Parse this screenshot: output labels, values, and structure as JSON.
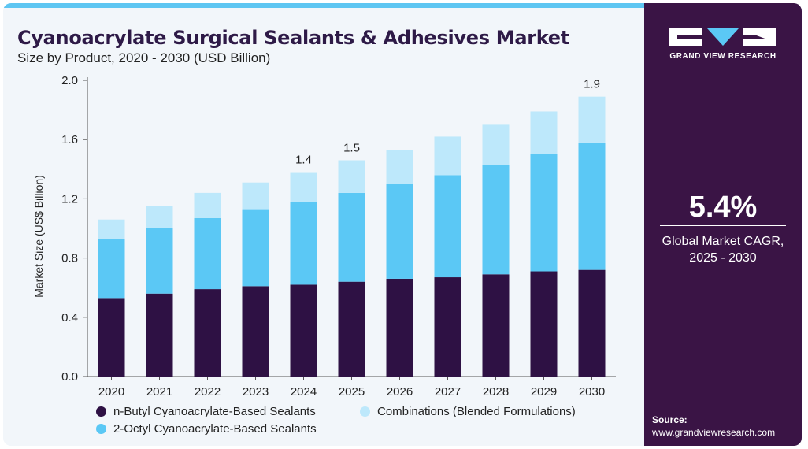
{
  "header": {
    "title": "Cyanoacrylate Surgical Sealants & Adhesives Market",
    "subtitle": "Size by Product, 2020 - 2030 (USD Billion)"
  },
  "brand": {
    "name": "GRAND VIEW RESEARCH",
    "logo_icon": "gvr-logo-icon"
  },
  "side_panel": {
    "cagr_value": "5.4%",
    "cagr_label_line1": "Global Market CAGR,",
    "cagr_label_line2": "2025 - 2030",
    "source_label": "Source:",
    "source_url": "www.grandviewresearch.com"
  },
  "colors": {
    "accent_top_bar": "#5ec6f2",
    "side_panel": "#3a1445",
    "n_butyl": "#2e1144",
    "octyl": "#5bc8f5",
    "combinations": "#bde8fb",
    "title": "#2e1a47"
  },
  "chart_data": {
    "type": "bar",
    "stacked": true,
    "categories": [
      "2020",
      "2021",
      "2022",
      "2023",
      "2024",
      "2025",
      "2026",
      "2027",
      "2028",
      "2029",
      "2030"
    ],
    "series": [
      {
        "name": "n-Butyl Cyanoacrylate-Based Sealants",
        "color": "#2e1144",
        "values": [
          0.53,
          0.56,
          0.59,
          0.61,
          0.62,
          0.64,
          0.66,
          0.67,
          0.69,
          0.71,
          0.72
        ]
      },
      {
        "name": "2-Octyl Cyanoacrylate-Based Sealants",
        "color": "#5bc8f5",
        "values": [
          0.4,
          0.44,
          0.48,
          0.52,
          0.56,
          0.6,
          0.64,
          0.69,
          0.74,
          0.79,
          0.86
        ]
      },
      {
        "name": "Combinations (Blended Formulations)",
        "color": "#bde8fb",
        "values": [
          0.13,
          0.15,
          0.17,
          0.18,
          0.2,
          0.22,
          0.23,
          0.26,
          0.27,
          0.29,
          0.31
        ]
      }
    ],
    "totals_labels": [
      {
        "category": "2024",
        "label": "1.4"
      },
      {
        "category": "2025",
        "label": "1.5"
      },
      {
        "category": "2030",
        "label": "1.9"
      }
    ],
    "ylabel": "Market Size (US$ Billion)",
    "xlabel": "",
    "ylim": [
      0,
      2.0
    ],
    "yticks": [
      "0.0",
      "0.4",
      "0.8",
      "1.2",
      "1.6",
      "2.0"
    ],
    "grid": false,
    "legend_position": "bottom"
  }
}
